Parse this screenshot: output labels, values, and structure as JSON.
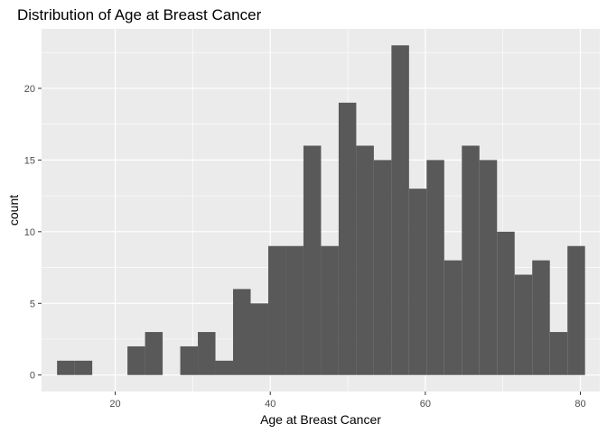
{
  "chart_data": {
    "type": "bar",
    "title": "Distribution of Age at Breast Cancer",
    "xlabel": "Age at Breast Cancer",
    "ylabel": "count",
    "xlim": [
      10.5,
      82.5
    ],
    "ylim": [
      -1.15,
      24.15
    ],
    "x_ticks": [
      20,
      40,
      60,
      80
    ],
    "y_ticks": [
      0,
      5,
      10,
      15,
      20
    ],
    "bin_width": 2.27,
    "bins": [
      {
        "start": 12.5,
        "count": 1
      },
      {
        "start": 14.77,
        "count": 1
      },
      {
        "start": 17.04,
        "count": 0
      },
      {
        "start": 19.31,
        "count": 0
      },
      {
        "start": 21.58,
        "count": 2
      },
      {
        "start": 23.85,
        "count": 3
      },
      {
        "start": 26.12,
        "count": 0
      },
      {
        "start": 28.39,
        "count": 2
      },
      {
        "start": 30.66,
        "count": 3
      },
      {
        "start": 32.93,
        "count": 1
      },
      {
        "start": 35.2,
        "count": 6
      },
      {
        "start": 37.47,
        "count": 5
      },
      {
        "start": 39.74,
        "count": 9
      },
      {
        "start": 42.01,
        "count": 9
      },
      {
        "start": 44.28,
        "count": 16
      },
      {
        "start": 46.55,
        "count": 9
      },
      {
        "start": 48.82,
        "count": 19
      },
      {
        "start": 51.09,
        "count": 16
      },
      {
        "start": 53.36,
        "count": 15
      },
      {
        "start": 55.63,
        "count": 23
      },
      {
        "start": 57.9,
        "count": 13
      },
      {
        "start": 60.17,
        "count": 15
      },
      {
        "start": 62.44,
        "count": 8
      },
      {
        "start": 64.71,
        "count": 16
      },
      {
        "start": 66.98,
        "count": 15
      },
      {
        "start": 69.25,
        "count": 10
      },
      {
        "start": 71.52,
        "count": 7
      },
      {
        "start": 73.79,
        "count": 8
      },
      {
        "start": 76.06,
        "count": 3
      },
      {
        "start": 78.33,
        "count": 9
      }
    ],
    "panel_background": "#ebebeb",
    "grid_color": "#ffffff",
    "bar_color": "#595959",
    "grid": true,
    "legend": "none"
  }
}
